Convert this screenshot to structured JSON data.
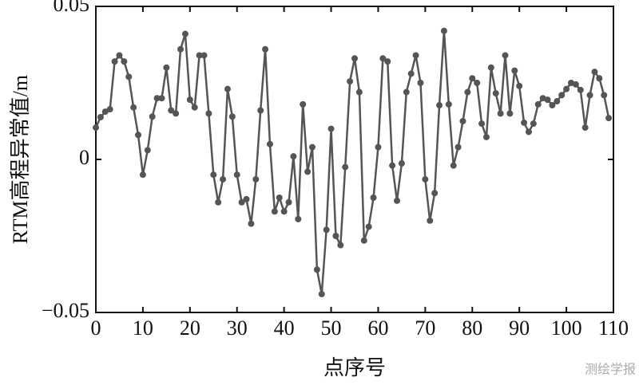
{
  "chart_data": {
    "type": "line",
    "y_label": "RTM高程异常值/m",
    "x_label": "点序号",
    "x": [
      0,
      1,
      2,
      3,
      4,
      5,
      6,
      7,
      8,
      9,
      10,
      11,
      12,
      13,
      14,
      15,
      16,
      17,
      18,
      19,
      20,
      21,
      22,
      23,
      24,
      25,
      26,
      27,
      28,
      29,
      30,
      31,
      32,
      33,
      34,
      35,
      36,
      37,
      38,
      39,
      40,
      41,
      42,
      43,
      44,
      45,
      46,
      47,
      48,
      49,
      50,
      51,
      52,
      53,
      54,
      55,
      56,
      57,
      58,
      59,
      60,
      61,
      62,
      63,
      64,
      65,
      66,
      67,
      68,
      69,
      70,
      71,
      72,
      73,
      74,
      75,
      76,
      77,
      78,
      79,
      80,
      81,
      82,
      83,
      84,
      85,
      86,
      87,
      88,
      89,
      90,
      91,
      92,
      93,
      94,
      95,
      96,
      97,
      98,
      99,
      100,
      101,
      102,
      103,
      104,
      105,
      106,
      107,
      108,
      109
    ],
    "series": [
      {
        "color": "#555555",
        "values": [
          0.0104,
          0.0138,
          0.0156,
          0.0164,
          0.032,
          0.034,
          0.032,
          0.027,
          0.017,
          0.008,
          -0.005,
          0.003,
          0.014,
          0.02,
          0.02,
          0.03,
          0.016,
          0.015,
          0.036,
          0.041,
          0.0195,
          0.017,
          0.034,
          0.034,
          0.015,
          -0.005,
          -0.014,
          -0.0065,
          0.023,
          0.014,
          -0.005,
          -0.014,
          -0.013,
          -0.021,
          -0.0065,
          0.016,
          0.036,
          0.005,
          -0.017,
          -0.0125,
          -0.017,
          -0.014,
          0.001,
          -0.0195,
          0.018,
          -0.004,
          0.004,
          -0.036,
          -0.044,
          -0.023,
          0.01,
          -0.025,
          -0.028,
          -0.0025,
          0.0255,
          0.033,
          0.022,
          -0.0265,
          -0.022,
          -0.0125,
          0.004,
          0.033,
          0.032,
          -0.002,
          -0.0135,
          -0.0013,
          0.022,
          0.028,
          0.034,
          0.025,
          -0.0065,
          -0.02,
          -0.011,
          0.0177,
          0.042,
          0.018,
          -0.002,
          0.004,
          0.0125,
          0.022,
          0.0265,
          0.025,
          0.0117,
          0.0073,
          0.03,
          0.0216,
          0.015,
          0.034,
          0.015,
          0.029,
          0.024,
          0.012,
          0.009,
          0.0117,
          0.018,
          0.02,
          0.0195,
          0.0177,
          0.019,
          0.021,
          0.023,
          0.025,
          0.0245,
          0.0227,
          0.0104,
          0.021,
          0.0286,
          0.0265,
          0.021,
          0.0135
        ]
      }
    ],
    "xlim": [
      0,
      110
    ],
    "xticks": [
      0,
      10,
      20,
      30,
      40,
      50,
      60,
      70,
      80,
      90,
      100,
      110
    ],
    "ylim": [
      -0.05,
      0.05
    ],
    "yticks": [
      {
        "value": -0.05,
        "label": "−0.05"
      },
      0,
      0.05
    ]
  },
  "watermark": "测绘学报"
}
